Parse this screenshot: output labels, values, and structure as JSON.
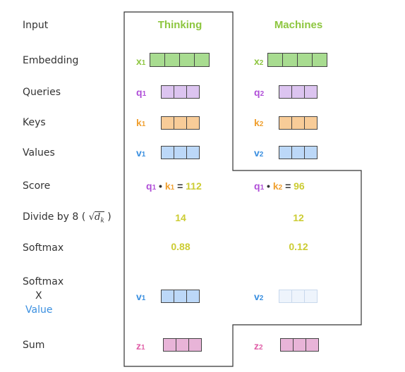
{
  "row_labels": {
    "input": "Input",
    "embedding": "Embedding",
    "queries": "Queries",
    "keys": "Keys",
    "values": "Values",
    "score": "Score",
    "divide_prefix": "Divide by 8 (",
    "divide_sqrt": "√",
    "divide_dk": "d",
    "divide_dk_sub": "k",
    "divide_suffix": ")",
    "softmax": "Softmax",
    "softmax_x_value_line1": "Softmax",
    "softmax_x_value_line2": "X",
    "softmax_x_value_line3": "Value",
    "sum": "Sum"
  },
  "words": [
    {
      "header": "Thinking",
      "x_label": "x",
      "x_sub": "1",
      "q_label": "q",
      "q_sub": "1",
      "k_label": "k",
      "k_sub": "1",
      "v_label": "v",
      "v_sub": "1",
      "score_q": "q",
      "score_q_sub": "1",
      "score_dot": "•",
      "score_k": "k",
      "score_k_sub": "1",
      "score_eq": "=",
      "score_value": "112",
      "divided": "14",
      "softmax": "0.88",
      "wv_label": "v",
      "wv_sub": "1",
      "z_label": "z",
      "z_sub": "1"
    },
    {
      "header": "Machines",
      "x_label": "x",
      "x_sub": "2",
      "q_label": "q",
      "q_sub": "2",
      "k_label": "k",
      "k_sub": "2",
      "v_label": "v",
      "v_sub": "2",
      "score_q": "q",
      "score_q_sub": "1",
      "score_dot": "•",
      "score_k": "k",
      "score_k_sub": "2",
      "score_eq": "=",
      "score_value": "96",
      "divided": "12",
      "softmax": "0.12",
      "wv_label": "v",
      "wv_sub": "2",
      "z_label": "z",
      "z_sub": "2"
    }
  ],
  "colors": {
    "header": "#8dc63f",
    "x": "#8dc63f",
    "q": "#b04fd8",
    "k": "#f0a030",
    "v": "#3a8fe0",
    "z": "#e060a8",
    "value_text": "#cccc33",
    "label": "#333333",
    "value_word": "#3a8fe0",
    "embedding_fill": "#a8dc90",
    "query_fill": "#dcc4f0",
    "key_fill": "#f8cc98",
    "value_fill": "#bcd8f8",
    "value_faded_fill": "#eef4fc",
    "sum_fill": "#e8b4d8"
  }
}
